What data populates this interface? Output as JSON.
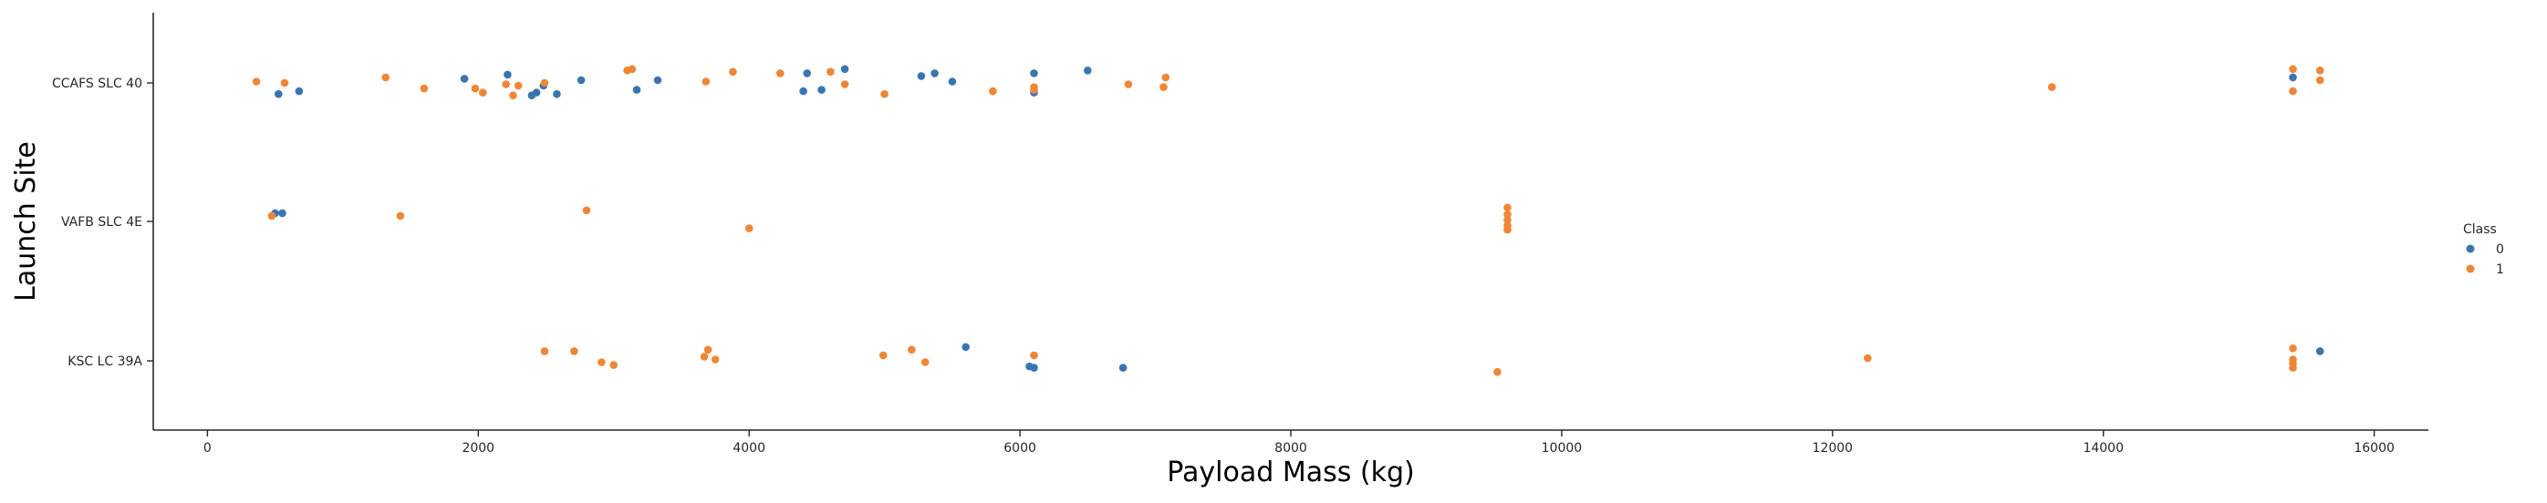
{
  "chart_data": {
    "type": "scatter",
    "title": "",
    "xlabel": "Payload Mass (kg)",
    "ylabel": "Launch Site",
    "xlim": [
      -400,
      16400
    ],
    "x_ticks": [
      0,
      2000,
      4000,
      6000,
      8000,
      10000,
      12000,
      14000,
      16000
    ],
    "categories": [
      "CCAFS SLC 40",
      "VAFB SLC 4E",
      "KSC LC 39A"
    ],
    "grid": false,
    "legend": {
      "title": "Class",
      "position": "right",
      "entries": [
        "0",
        "1"
      ]
    },
    "colors": {
      "0": "#3a75b0",
      "1": "#ef8636"
    },
    "series": [
      {
        "name": "0",
        "points": [
          {
            "x": 525,
            "site": "CCAFS SLC 40",
            "j": 0.08
          },
          {
            "x": 677,
            "site": "CCAFS SLC 40",
            "j": 0.06
          },
          {
            "x": 1898,
            "site": "CCAFS SLC 40",
            "j": -0.03
          },
          {
            "x": 2216,
            "site": "CCAFS SLC 40",
            "j": -0.06
          },
          {
            "x": 2395,
            "site": "CCAFS SLC 40",
            "j": 0.09
          },
          {
            "x": 2430,
            "site": "CCAFS SLC 40",
            "j": 0.07
          },
          {
            "x": 2482,
            "site": "CCAFS SLC 40",
            "j": 0.02
          },
          {
            "x": 2580,
            "site": "CCAFS SLC 40",
            "j": 0.08
          },
          {
            "x": 2760,
            "site": "CCAFS SLC 40",
            "j": -0.02
          },
          {
            "x": 3170,
            "site": "CCAFS SLC 40",
            "j": 0.05
          },
          {
            "x": 3325,
            "site": "CCAFS SLC 40",
            "j": -0.02
          },
          {
            "x": 4400,
            "site": "CCAFS SLC 40",
            "j": 0.06
          },
          {
            "x": 4428,
            "site": "CCAFS SLC 40",
            "j": -0.07
          },
          {
            "x": 4535,
            "site": "CCAFS SLC 40",
            "j": 0.05
          },
          {
            "x": 4707,
            "site": "CCAFS SLC 40",
            "j": -0.1
          },
          {
            "x": 5271,
            "site": "CCAFS SLC 40",
            "j": -0.05
          },
          {
            "x": 5370,
            "site": "CCAFS SLC 40",
            "j": -0.07
          },
          {
            "x": 5500,
            "site": "CCAFS SLC 40",
            "j": -0.01
          },
          {
            "x": 6104,
            "site": "CCAFS SLC 40",
            "j": -0.07
          },
          {
            "x": 6104,
            "site": "CCAFS SLC 40",
            "j": 0.07
          },
          {
            "x": 6500,
            "site": "CCAFS SLC 40",
            "j": -0.09
          },
          {
            "x": 15400,
            "site": "CCAFS SLC 40",
            "j": -0.04
          },
          {
            "x": 500,
            "site": "VAFB SLC 4E",
            "j": -0.06
          },
          {
            "x": 553,
            "site": "VAFB SLC 4E",
            "j": -0.06
          },
          {
            "x": 5600,
            "site": "KSC LC 39A",
            "j": -0.1
          },
          {
            "x": 6070,
            "site": "KSC LC 39A",
            "j": 0.04
          },
          {
            "x": 6104,
            "site": "KSC LC 39A",
            "j": 0.05
          },
          {
            "x": 6761,
            "site": "KSC LC 39A",
            "j": 0.05
          },
          {
            "x": 15600,
            "site": "KSC LC 39A",
            "j": -0.07
          }
        ]
      },
      {
        "name": "1",
        "points": [
          {
            "x": 362,
            "site": "CCAFS SLC 40",
            "j": -0.01
          },
          {
            "x": 570,
            "site": "CCAFS SLC 40",
            "j": 0.0
          },
          {
            "x": 1316,
            "site": "CCAFS SLC 40",
            "j": -0.04
          },
          {
            "x": 1600,
            "site": "CCAFS SLC 40",
            "j": 0.04
          },
          {
            "x": 1977,
            "site": "CCAFS SLC 40",
            "j": 0.04
          },
          {
            "x": 2034,
            "site": "CCAFS SLC 40",
            "j": 0.07
          },
          {
            "x": 2205,
            "site": "CCAFS SLC 40",
            "j": 0.01
          },
          {
            "x": 2257,
            "site": "CCAFS SLC 40",
            "j": 0.09
          },
          {
            "x": 2296,
            "site": "CCAFS SLC 40",
            "j": 0.02
          },
          {
            "x": 2490,
            "site": "CCAFS SLC 40",
            "j": 0.0
          },
          {
            "x": 3100,
            "site": "CCAFS SLC 40",
            "j": -0.09
          },
          {
            "x": 3136,
            "site": "CCAFS SLC 40",
            "j": -0.1
          },
          {
            "x": 3681,
            "site": "CCAFS SLC 40",
            "j": -0.01
          },
          {
            "x": 3880,
            "site": "CCAFS SLC 40",
            "j": -0.08
          },
          {
            "x": 4230,
            "site": "CCAFS SLC 40",
            "j": -0.07
          },
          {
            "x": 4600,
            "site": "CCAFS SLC 40",
            "j": -0.08
          },
          {
            "x": 4707,
            "site": "CCAFS SLC 40",
            "j": 0.01
          },
          {
            "x": 5000,
            "site": "CCAFS SLC 40",
            "j": 0.08
          },
          {
            "x": 5800,
            "site": "CCAFS SLC 40",
            "j": 0.06
          },
          {
            "x": 6104,
            "site": "CCAFS SLC 40",
            "j": 0.03
          },
          {
            "x": 6104,
            "site": "CCAFS SLC 40",
            "j": 0.05
          },
          {
            "x": 6800,
            "site": "CCAFS SLC 40",
            "j": 0.01
          },
          {
            "x": 7060,
            "site": "CCAFS SLC 40",
            "j": 0.03
          },
          {
            "x": 7076,
            "site": "CCAFS SLC 40",
            "j": -0.04
          },
          {
            "x": 13620,
            "site": "CCAFS SLC 40",
            "j": 0.03
          },
          {
            "x": 15400,
            "site": "CCAFS SLC 40",
            "j": -0.1
          },
          {
            "x": 15400,
            "site": "CCAFS SLC 40",
            "j": 0.06
          },
          {
            "x": 15600,
            "site": "CCAFS SLC 40",
            "j": -0.09
          },
          {
            "x": 15600,
            "site": "CCAFS SLC 40",
            "j": -0.02
          },
          {
            "x": 475,
            "site": "VAFB SLC 4E",
            "j": -0.04
          },
          {
            "x": 1425,
            "site": "VAFB SLC 4E",
            "j": -0.04
          },
          {
            "x": 2800,
            "site": "VAFB SLC 4E",
            "j": -0.08
          },
          {
            "x": 4000,
            "site": "VAFB SLC 4E",
            "j": 0.05
          },
          {
            "x": 9600,
            "site": "VAFB SLC 4E",
            "j": -0.1
          },
          {
            "x": 9600,
            "site": "VAFB SLC 4E",
            "j": -0.05
          },
          {
            "x": 9600,
            "site": "VAFB SLC 4E",
            "j": -0.01
          },
          {
            "x": 9600,
            "site": "VAFB SLC 4E",
            "j": 0.03
          },
          {
            "x": 9600,
            "site": "VAFB SLC 4E",
            "j": 0.06
          },
          {
            "x": 2490,
            "site": "KSC LC 39A",
            "j": -0.07
          },
          {
            "x": 2708,
            "site": "KSC LC 39A",
            "j": -0.07
          },
          {
            "x": 2910,
            "site": "KSC LC 39A",
            "j": 0.01
          },
          {
            "x": 3000,
            "site": "KSC LC 39A",
            "j": 0.03
          },
          {
            "x": 3669,
            "site": "KSC LC 39A",
            "j": -0.03
          },
          {
            "x": 3696,
            "site": "KSC LC 39A",
            "j": -0.08
          },
          {
            "x": 3750,
            "site": "KSC LC 39A",
            "j": -0.01
          },
          {
            "x": 4990,
            "site": "KSC LC 39A",
            "j": -0.04
          },
          {
            "x": 5200,
            "site": "KSC LC 39A",
            "j": -0.08
          },
          {
            "x": 5300,
            "site": "KSC LC 39A",
            "j": 0.01
          },
          {
            "x": 6104,
            "site": "KSC LC 39A",
            "j": -0.04
          },
          {
            "x": 9525,
            "site": "KSC LC 39A",
            "j": 0.08
          },
          {
            "x": 12259,
            "site": "KSC LC 39A",
            "j": -0.02
          },
          {
            "x": 15400,
            "site": "KSC LC 39A",
            "j": -0.09
          },
          {
            "x": 15400,
            "site": "KSC LC 39A",
            "j": -0.01
          },
          {
            "x": 15400,
            "site": "KSC LC 39A",
            "j": 0.02
          },
          {
            "x": 15400,
            "site": "KSC LC 39A",
            "j": 0.05
          }
        ]
      }
    ]
  }
}
